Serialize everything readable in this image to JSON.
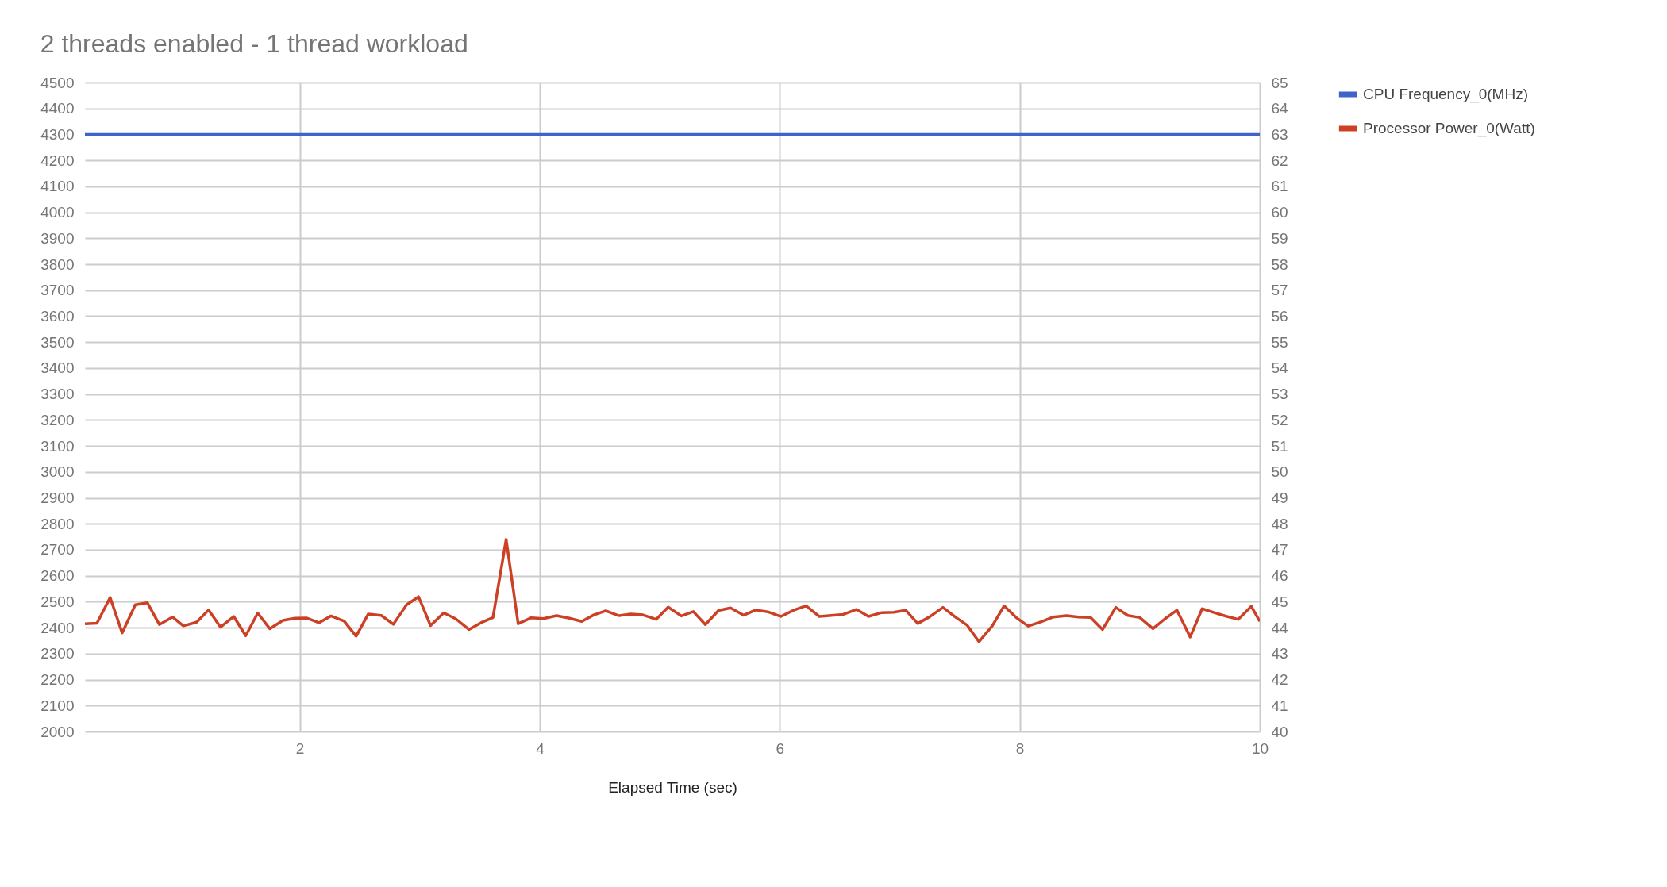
{
  "chart_data": {
    "type": "line",
    "title": "2 threads enabled - 1 thread workload",
    "xlabel": "Elapsed Time (sec)",
    "xlim": [
      0.21,
      10
    ],
    "xticks": [
      2,
      4,
      6,
      8,
      10
    ],
    "ylim": [
      2000,
      4500
    ],
    "yticks": [
      2000,
      2100,
      2200,
      2300,
      2400,
      2500,
      2600,
      2700,
      2800,
      2900,
      3000,
      3100,
      3200,
      3300,
      3400,
      3500,
      3600,
      3700,
      3800,
      3900,
      4000,
      4100,
      4200,
      4300,
      4400,
      4500
    ],
    "y2lim": [
      40,
      65
    ],
    "y2ticks": [
      40,
      41,
      42,
      43,
      44,
      45,
      46,
      47,
      48,
      49,
      50,
      51,
      52,
      53,
      54,
      55,
      56,
      57,
      58,
      59,
      60,
      61,
      62,
      63,
      64,
      65
    ],
    "grid": true,
    "legend": "top right",
    "marker": "none",
    "line_style": "solid",
    "series": [
      {
        "name": "CPU Frequency_0(MHz)",
        "color": "#3f63c8",
        "axis": "y",
        "x": [
          0.21,
          10
        ],
        "values": [
          4300,
          4300
        ]
      },
      {
        "name": "Processor Power_0(Watt)",
        "color": "#cc4125",
        "axis": "y2",
        "x": [
          0.21,
          0.31,
          0.42,
          0.52,
          0.63,
          0.73,
          0.83,
          0.94,
          1.03,
          1.14,
          1.24,
          1.34,
          1.45,
          1.55,
          1.65,
          1.75,
          1.86,
          1.96,
          2.06,
          2.16,
          2.26,
          2.37,
          2.47,
          2.57,
          2.68,
          2.78,
          2.89,
          2.99,
          3.09,
          3.2,
          3.3,
          3.41,
          3.51,
          3.61,
          3.72,
          3.82,
          3.93,
          4.03,
          4.14,
          4.24,
          4.35,
          4.45,
          4.55,
          4.66,
          4.76,
          4.86,
          4.97,
          5.07,
          5.18,
          5.28,
          5.38,
          5.49,
          5.59,
          5.7,
          5.8,
          5.9,
          6.01,
          6.12,
          6.22,
          6.33,
          6.43,
          6.53,
          6.64,
          6.74,
          6.85,
          6.95,
          7.05,
          7.15,
          7.25,
          7.36,
          7.46,
          7.56,
          7.66,
          7.77,
          7.87,
          7.97,
          8.07,
          8.18,
          8.28,
          8.39,
          8.49,
          8.59,
          8.69,
          8.8,
          8.9,
          9.0,
          9.11,
          9.21,
          9.31,
          9.42,
          9.52,
          9.62,
          9.72,
          9.82,
          9.93,
          10.0
        ],
        "values": [
          44.15,
          44.17,
          45.16,
          43.8,
          44.88,
          44.96,
          44.12,
          44.41,
          44.07,
          44.21,
          44.68,
          44.02,
          44.43,
          43.69,
          44.56,
          43.96,
          44.28,
          44.36,
          44.37,
          44.19,
          44.45,
          44.25,
          43.67,
          44.52,
          44.47,
          44.13,
          44.88,
          45.19,
          44.08,
          44.57,
          44.34,
          43.93,
          44.19,
          44.39,
          47.4,
          44.15,
          44.38,
          44.35,
          44.46,
          44.37,
          44.24,
          44.49,
          44.65,
          44.46,
          44.52,
          44.49,
          44.32,
          44.79,
          44.45,
          44.62,
          44.12,
          44.66,
          44.76,
          44.48,
          44.68,
          44.61,
          44.43,
          44.68,
          44.84,
          44.43,
          44.47,
          44.51,
          44.7,
          44.43,
          44.58,
          44.59,
          44.67,
          44.16,
          44.42,
          44.78,
          44.42,
          44.1,
          43.46,
          44.06,
          44.84,
          44.39,
          44.06,
          44.23,
          44.41,
          44.46,
          44.41,
          44.39,
          43.93,
          44.78,
          44.47,
          44.39,
          43.96,
          44.34,
          44.67,
          43.64,
          44.73,
          44.58,
          44.44,
          44.32,
          44.82,
          44.24
        ]
      }
    ]
  }
}
